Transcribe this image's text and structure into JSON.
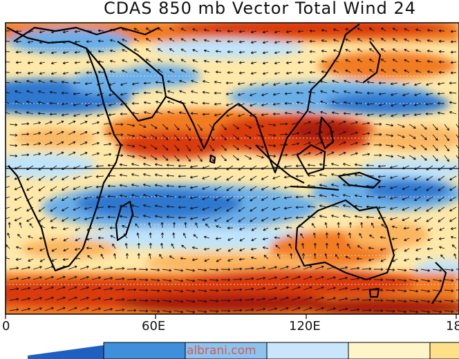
{
  "title": "CDAS 850 mb Vector Total Wind 24",
  "lon_labels": [
    "0",
    "60E",
    "120E",
    "18"
  ],
  "colorbar": {
    "colors": [
      "#1f5fbf",
      "#3e8fdc",
      "#8cc3ef",
      "#c9e6fb",
      "#fff5c9",
      "#ffe08a"
    ]
  },
  "watermark": "albrani.com",
  "palette": {
    "deep_red": "#a91a0a",
    "red": "#d93b10",
    "orange": "#f27b22",
    "light_orange": "#fbb55e",
    "pale": "#ffe8a8",
    "light_blue": "#bfe3fa",
    "blue": "#6aaee8",
    "deep_blue": "#2f78cf"
  }
}
